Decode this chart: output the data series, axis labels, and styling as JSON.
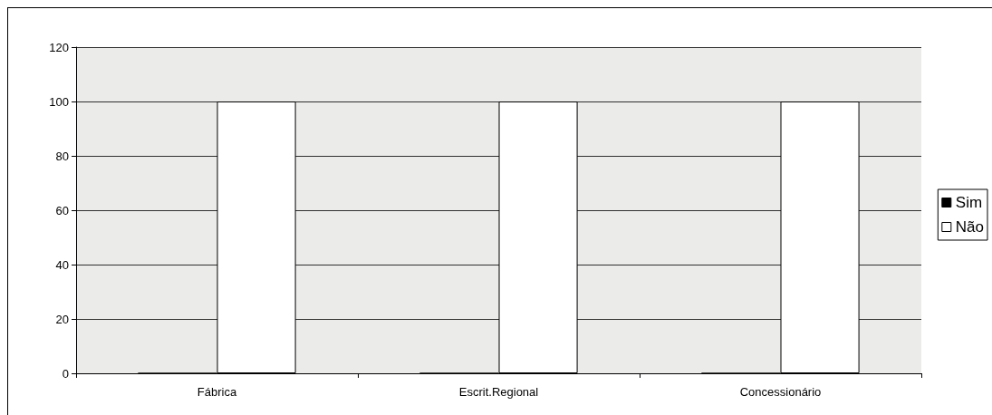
{
  "chart_data": {
    "type": "bar",
    "categories": [
      "Fábrica",
      "Escrit.Regional",
      "Concessionário"
    ],
    "series": [
      {
        "name": "Sim",
        "color": "#000000",
        "values": [
          0,
          0,
          0
        ]
      },
      {
        "name": "Não",
        "color": "#ffffff",
        "values": [
          100,
          100,
          100
        ]
      }
    ],
    "ylim": [
      0,
      120
    ],
    "yticks": [
      0,
      20,
      40,
      60,
      80,
      100,
      120
    ],
    "grid": "y",
    "legend": "right"
  }
}
